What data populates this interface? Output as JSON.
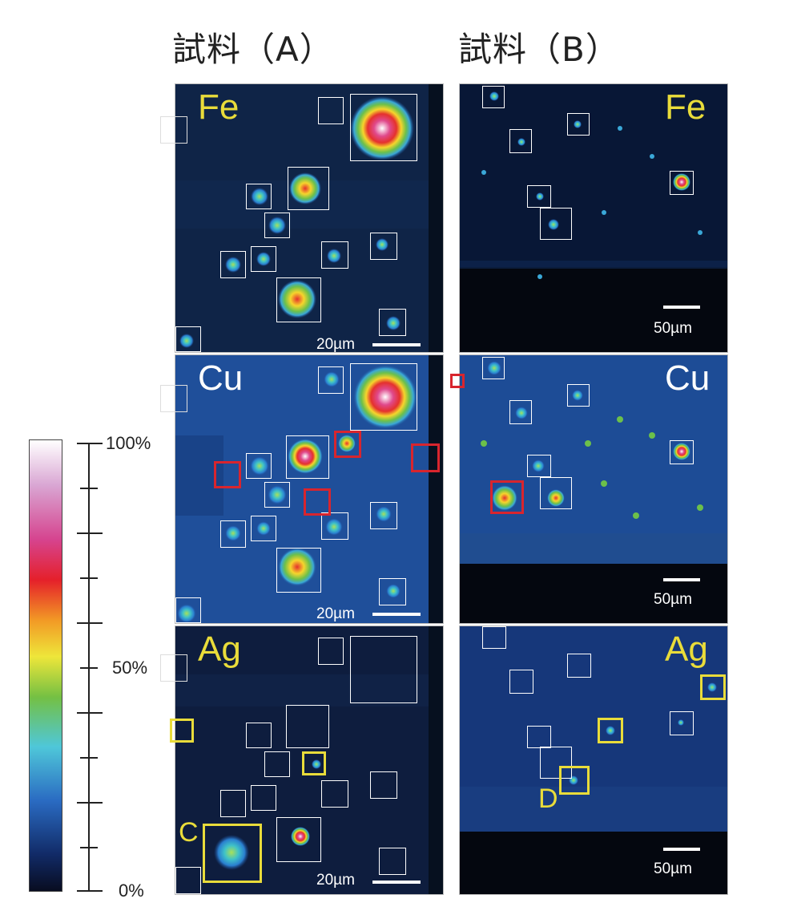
{
  "titles": {
    "sample_a": "試料（A）",
    "sample_b": "試料（B）"
  },
  "elements": {
    "fe": "Fe",
    "cu": "Cu",
    "ag": "Ag"
  },
  "scale": {
    "a": "20µm",
    "b": "50µm"
  },
  "colorbar": {
    "top": "100%",
    "mid": "50%",
    "bottom": "0%"
  },
  "labels": {
    "c": "C",
    "d": "D"
  },
  "colors": {
    "element_label_white": "#ffffff",
    "element_label_yellow": "#e9dc3a",
    "box_white": "#ffffff",
    "box_red": "#d8252e",
    "box_yellow": "#e9dc3a"
  }
}
